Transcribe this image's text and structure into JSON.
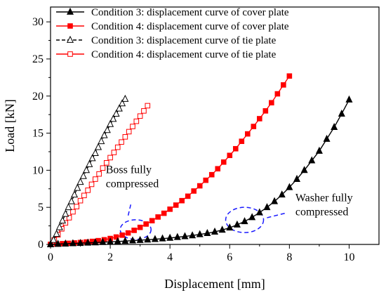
{
  "chart_data": {
    "type": "line",
    "xlabel": "Displacement [mm]",
    "ylabel": "Load [kN]",
    "xlim": [
      0,
      11
    ],
    "ylim": [
      0,
      32
    ],
    "xticks": [
      0,
      2,
      4,
      6,
      8,
      10
    ],
    "yticks": [
      0,
      5,
      10,
      15,
      20,
      25,
      30
    ],
    "grid": false,
    "legend_position": "top-center",
    "series": [
      {
        "name": "Condition 3: displacement curve of cover plate",
        "color": "#000000",
        "marker": "filled-triangle",
        "line": "solid",
        "x": [
          0,
          0.25,
          0.5,
          0.75,
          1.0,
          1.25,
          1.5,
          1.75,
          2.0,
          2.25,
          2.5,
          2.75,
          3.0,
          3.25,
          3.5,
          3.75,
          4.0,
          4.25,
          4.5,
          4.75,
          5.0,
          5.25,
          5.5,
          5.75,
          6.0,
          6.25,
          6.5,
          6.75,
          7.0,
          7.25,
          7.5,
          7.75,
          8.0,
          8.25,
          8.5,
          8.75,
          9.0,
          9.25,
          9.5,
          9.75,
          10.0
        ],
        "y": [
          0,
          0.05,
          0.09,
          0.13,
          0.17,
          0.21,
          0.25,
          0.3,
          0.35,
          0.4,
          0.45,
          0.51,
          0.57,
          0.63,
          0.7,
          0.78,
          0.87,
          0.97,
          1.08,
          1.2,
          1.35,
          1.5,
          1.7,
          1.95,
          2.25,
          2.65,
          3.1,
          3.65,
          4.3,
          5.0,
          5.8,
          6.7,
          7.7,
          8.8,
          10.0,
          11.3,
          12.6,
          14.2,
          15.8,
          17.6,
          19.5
        ]
      },
      {
        "name": "Condition 4: displacement curve of cover plate",
        "color": "#ff0000",
        "marker": "filled-square",
        "line": "solid",
        "x": [
          0,
          0.2,
          0.4,
          0.6,
          0.8,
          1.0,
          1.2,
          1.4,
          1.6,
          1.8,
          2.0,
          2.2,
          2.4,
          2.6,
          2.8,
          3.0,
          3.2,
          3.4,
          3.6,
          3.8,
          4.0,
          4.2,
          4.4,
          4.6,
          4.8,
          5.0,
          5.2,
          5.4,
          5.6,
          5.8,
          6.0,
          6.2,
          6.4,
          6.6,
          6.8,
          7.0,
          7.2,
          7.4,
          7.6,
          7.8,
          8.0
        ],
        "y": [
          0,
          0.05,
          0.1,
          0.15,
          0.2,
          0.26,
          0.33,
          0.41,
          0.51,
          0.63,
          0.8,
          1.0,
          1.25,
          1.55,
          1.9,
          2.3,
          2.75,
          3.2,
          3.7,
          4.2,
          4.75,
          5.3,
          5.9,
          6.5,
          7.2,
          7.9,
          8.65,
          9.4,
          10.2,
          11.1,
          12.0,
          12.9,
          13.9,
          14.9,
          15.9,
          16.95,
          18.0,
          19.1,
          20.3,
          21.5,
          22.7
        ]
      },
      {
        "name": "Condition 3: displacement curve of tie plate",
        "color": "#000000",
        "marker": "open-triangle",
        "line": "dashed",
        "x": [
          0,
          0.1,
          0.2,
          0.3,
          0.4,
          0.5,
          0.6,
          0.7,
          0.8,
          0.9,
          1.0,
          1.1,
          1.2,
          1.3,
          1.4,
          1.5,
          1.6,
          1.7,
          1.8,
          1.9,
          2.0,
          2.1,
          2.2,
          2.3,
          2.4,
          2.5
        ],
        "y": [
          0,
          0.6,
          1.4,
          2.3,
          3.2,
          4.1,
          5.0,
          5.8,
          6.7,
          7.6,
          8.4,
          9.2,
          10.0,
          10.8,
          11.6,
          12.3,
          13.1,
          13.9,
          14.7,
          15.4,
          16.2,
          16.9,
          17.6,
          18.3,
          19.0,
          19.6
        ]
      },
      {
        "name": "Condition 4: displacement curve of tie plate",
        "color": "#ff0000",
        "marker": "open-square",
        "line": "solid",
        "x": [
          0,
          0.125,
          0.25,
          0.375,
          0.5,
          0.625,
          0.75,
          0.875,
          1.0,
          1.125,
          1.25,
          1.375,
          1.5,
          1.625,
          1.75,
          1.875,
          2.0,
          2.125,
          2.25,
          2.375,
          2.5,
          2.625,
          2.75,
          2.875,
          3.0,
          3.125,
          3.25
        ],
        "y": [
          0,
          0.6,
          1.3,
          2.1,
          2.9,
          3.6,
          4.4,
          5.1,
          5.9,
          6.6,
          7.3,
          8.1,
          8.8,
          9.5,
          10.3,
          11.0,
          11.7,
          12.4,
          13.1,
          13.8,
          14.5,
          15.2,
          15.9,
          16.6,
          17.3,
          18.0,
          18.7
        ]
      }
    ],
    "annotations": [
      {
        "lines": [
          "Boss fully",
          "compressed"
        ],
        "x": 1.85,
        "y": 9.6
      },
      {
        "lines": [
          "Washer fully",
          "compressed"
        ],
        "x": 8.2,
        "y": 5.8
      }
    ]
  }
}
